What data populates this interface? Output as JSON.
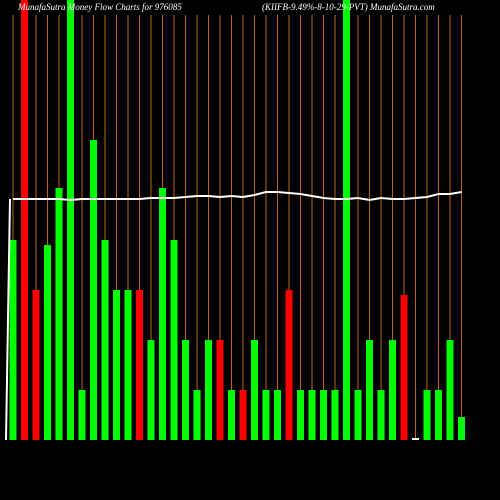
{
  "chart_data": {
    "type": "bar",
    "title": "MunafaSutra Money Flow Charts for 976085",
    "subtitle": "(KIIFB-9.49%-8-10-29-PVT) MunafaSutra.com",
    "categories": [
      null,
      null,
      null,
      null,
      null,
      null,
      null,
      null,
      null,
      null,
      null,
      null,
      null,
      null,
      null,
      null,
      null,
      null,
      null,
      null,
      null,
      null,
      null,
      null,
      null,
      null,
      null,
      null,
      null,
      null,
      null,
      null,
      null,
      null,
      null,
      null,
      null,
      null,
      null,
      null
    ],
    "values": [
      200,
      440,
      150,
      195,
      252,
      440,
      50,
      300,
      200,
      150,
      150,
      150,
      100,
      252,
      200,
      100,
      50,
      100,
      100,
      50,
      50,
      100,
      50,
      50,
      150,
      50,
      50,
      50,
      50,
      440,
      50,
      100,
      50,
      100,
      145,
      2,
      50,
      50,
      100,
      23
    ],
    "colors": [
      "#00ff00",
      "#ff0000",
      "#ff0000",
      "#00ff00",
      "#00ff00",
      "#00ff00",
      "#00ff00",
      "#00ff00",
      "#00ff00",
      "#00ff00",
      "#00ff00",
      "#ff0000",
      "#00ff00",
      "#00ff00",
      "#00ff00",
      "#00ff00",
      "#00ff00",
      "#00ff00",
      "#ff0000",
      "#00ff00",
      "#ff0000",
      "#00ff00",
      "#00ff00",
      "#00ff00",
      "#ff0000",
      "#00ff00",
      "#00ff00",
      "#00ff00",
      "#00ff00",
      "#00ff00",
      "#00ff00",
      "#00ff00",
      "#00ff00",
      "#00ff00",
      "#ff0000",
      "#ffffff",
      "#00ff00",
      "#00ff00",
      "#00ff00",
      "#00ff00"
    ],
    "line_values": [
      241,
      241,
      241,
      241,
      241,
      240,
      241,
      241,
      241,
      241,
      241,
      241,
      242,
      242,
      242,
      243,
      244,
      244,
      243,
      244,
      243,
      245,
      248,
      248,
      247,
      246,
      244,
      242,
      241,
      241,
      242,
      240,
      242,
      241,
      241,
      242,
      243,
      246,
      246,
      248
    ],
    "line_color": "#ffffff",
    "grid_color": "#b8641e",
    "ylim": [
      0,
      440
    ]
  }
}
